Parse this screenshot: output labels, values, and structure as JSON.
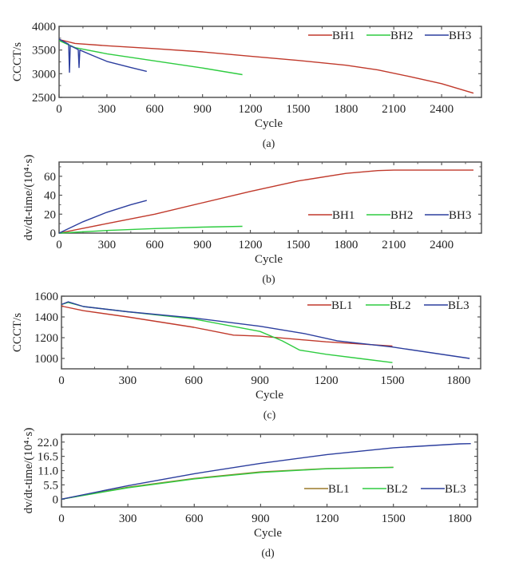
{
  "figure": {
    "panels": [
      "a",
      "b",
      "c",
      "d"
    ]
  },
  "chart_data": [
    {
      "id": "a",
      "type": "line",
      "caption": "(a)",
      "xlabel": "Cycle",
      "ylabel": "CCCT/s",
      "xlim": [
        0,
        2650
      ],
      "ylim": [
        2500,
        4000
      ],
      "xticks": [
        0,
        300,
        600,
        900,
        1200,
        1500,
        1800,
        2100,
        2400
      ],
      "xtick_labels": [
        "0",
        "300",
        "600",
        "900",
        "1200",
        "1500",
        "1800",
        "2100",
        "2400"
      ],
      "yticks": [
        2500,
        3000,
        3500,
        4000
      ],
      "ytick_labels": [
        "2500",
        "3000",
        "3500",
        "4000"
      ],
      "legend": {
        "placement": "top-right",
        "entries": [
          "BH1",
          "BH2",
          "BH3"
        ]
      },
      "series": [
        {
          "name": "BH1",
          "color": "#c0392b",
          "x": [
            0,
            100,
            300,
            600,
            900,
            1200,
            1500,
            1800,
            2000,
            2200,
            2400,
            2600
          ],
          "y": [
            3720,
            3640,
            3590,
            3530,
            3460,
            3370,
            3280,
            3180,
            3080,
            2940,
            2790,
            2590
          ]
        },
        {
          "name": "BH2",
          "color": "#2ecc40",
          "x": [
            0,
            100,
            300,
            600,
            900,
            1150
          ],
          "y": [
            3700,
            3550,
            3420,
            3270,
            3120,
            2980
          ]
        },
        {
          "name": "BH3",
          "color": "#2c3e9e",
          "x": [
            0,
            60,
            65,
            70,
            120,
            125,
            130,
            200,
            300,
            450,
            550
          ],
          "y": [
            3730,
            3620,
            3030,
            3590,
            3510,
            3130,
            3500,
            3400,
            3260,
            3130,
            3050
          ]
        }
      ]
    },
    {
      "id": "b",
      "type": "line",
      "caption": "(b)",
      "xlabel": "Cycle",
      "ylabel": "dv/dt-time/(10⁴·s)",
      "xlim": [
        0,
        2650
      ],
      "ylim": [
        0,
        75
      ],
      "xticks": [
        0,
        300,
        600,
        900,
        1200,
        1500,
        1800,
        2100,
        2400
      ],
      "xtick_labels": [
        "0",
        "300",
        "600",
        "900",
        "1200",
        "1500",
        "1800",
        "2100",
        "2400"
      ],
      "yticks": [
        0,
        20,
        40,
        60
      ],
      "ytick_labels": [
        "0",
        "20",
        "40",
        "60"
      ],
      "legend": {
        "placement": "bottom-right",
        "entries": [
          "BH1",
          "BH2",
          "BH3"
        ]
      },
      "series": [
        {
          "name": "BH1",
          "color": "#c0392b",
          "x": [
            0,
            300,
            600,
            900,
            1200,
            1500,
            1800,
            2000,
            2100,
            2400,
            2600
          ],
          "y": [
            0,
            10,
            20,
            32,
            44,
            55,
            63,
            66,
            66.5,
            66.5,
            66.5
          ]
        },
        {
          "name": "BH2",
          "color": "#2ecc40",
          "x": [
            0,
            300,
            600,
            900,
            1150
          ],
          "y": [
            0,
            2.8,
            4.8,
            6.3,
            7.2
          ]
        },
        {
          "name": "BH3",
          "color": "#2c3e9e",
          "x": [
            0,
            150,
            300,
            450,
            550
          ],
          "y": [
            0,
            12,
            22,
            30,
            34.5
          ]
        }
      ]
    },
    {
      "id": "c",
      "type": "line",
      "caption": "(c)",
      "xlabel": "Cycle",
      "ylabel": "CCCT/s",
      "xlim": [
        0,
        1900
      ],
      "ylim": [
        900,
        1600
      ],
      "xticks": [
        0,
        300,
        600,
        900,
        1200,
        1500,
        1800
      ],
      "xtick_labels": [
        "0",
        "300",
        "600",
        "900",
        "1200",
        "1500",
        "1800"
      ],
      "yticks": [
        1000,
        1200,
        1400,
        1600
      ],
      "ytick_labels": [
        "1000",
        "1200",
        "1400",
        "1600"
      ],
      "legend": {
        "placement": "top-right",
        "entries": [
          "BL1",
          "BL2",
          "BL3"
        ]
      },
      "series": [
        {
          "name": "BL1",
          "color": "#c0392b",
          "x": [
            0,
            10,
            100,
            300,
            600,
            780,
            900,
            1200,
            1500
          ],
          "y": [
            1510,
            1500,
            1460,
            1400,
            1300,
            1225,
            1215,
            1160,
            1120
          ]
        },
        {
          "name": "BL2",
          "color": "#2ecc40",
          "x": [
            0,
            30,
            100,
            300,
            600,
            900,
            1000,
            1080,
            1200,
            1350,
            1500
          ],
          "y": [
            1520,
            1540,
            1500,
            1450,
            1380,
            1260,
            1170,
            1080,
            1040,
            1000,
            960
          ]
        },
        {
          "name": "BL3",
          "color": "#2c3e9e",
          "x": [
            0,
            30,
            100,
            300,
            600,
            900,
            1100,
            1250,
            1500,
            1850
          ],
          "y": [
            1520,
            1545,
            1500,
            1450,
            1390,
            1310,
            1240,
            1170,
            1110,
            1000
          ]
        }
      ]
    },
    {
      "id": "d",
      "type": "line",
      "caption": "(d)",
      "xlabel": "Cycle",
      "ylabel": "dv/dt-time/(10⁴·s)",
      "xlim": [
        0,
        1880
      ],
      "ylim": [
        -3,
        25
      ],
      "xticks": [
        0,
        300,
        600,
        900,
        1200,
        1500,
        1800
      ],
      "xtick_labels": [
        "0",
        "300",
        "600",
        "900",
        "1200",
        "1500",
        "1800"
      ],
      "yticks": [
        0,
        5.5,
        11.0,
        16.5,
        22.0
      ],
      "ytick_labels": [
        "0",
        "5.5",
        "11.0",
        "16.5",
        "22.0"
      ],
      "legend": {
        "placement": "bottom-right",
        "entries": [
          "BL1",
          "BL2",
          "BL3"
        ]
      },
      "series": [
        {
          "name": "BL1",
          "color": "#9a7a2a",
          "x": [
            0,
            300,
            600,
            900,
            1200,
            1500
          ],
          "y": [
            0,
            4.6,
            8.0,
            10.5,
            11.8,
            12.3
          ]
        },
        {
          "name": "BL2",
          "color": "#2ecc40",
          "x": [
            0,
            300,
            600,
            900,
            1200,
            1500
          ],
          "y": [
            0,
            4.4,
            7.8,
            10.3,
            11.7,
            12.2
          ]
        },
        {
          "name": "BL3",
          "color": "#2c3e9e",
          "x": [
            0,
            300,
            600,
            900,
            1200,
            1500,
            1800,
            1850
          ],
          "y": [
            0,
            5.2,
            9.8,
            13.8,
            17.2,
            19.8,
            21.3,
            21.4
          ]
        }
      ]
    }
  ]
}
